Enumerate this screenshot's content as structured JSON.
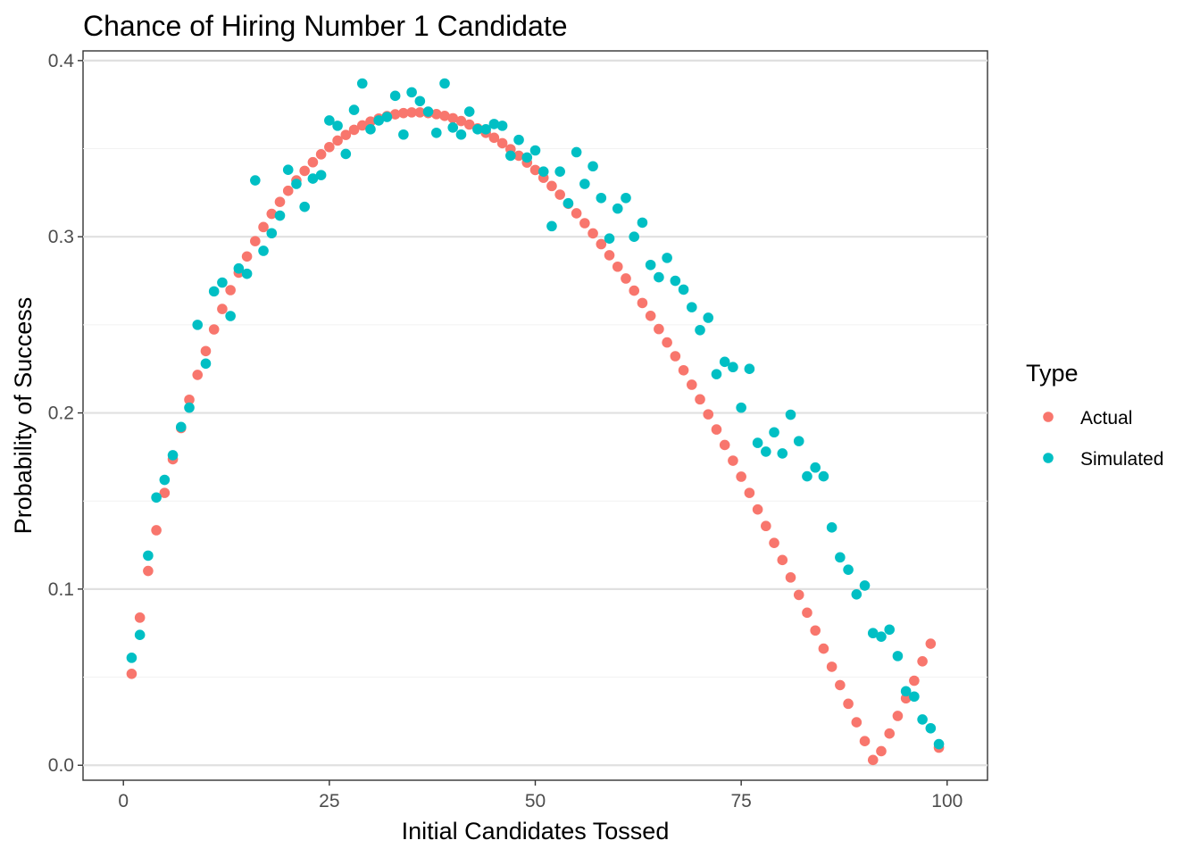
{
  "chart_data": {
    "type": "scatter",
    "title": "Chance of Hiring Number 1 Candidate",
    "xlabel": "Initial Candidates Tossed",
    "ylabel": "Probability of Success",
    "xlim": [
      -4.9,
      104.9
    ],
    "ylim": [
      -0.0085,
      0.4055
    ],
    "x_ticks": [
      0,
      25,
      50,
      75,
      100
    ],
    "x_tick_labels": [
      "0",
      "25",
      "50",
      "75",
      "100"
    ],
    "y_ticks": [
      0.0,
      0.1,
      0.2,
      0.3,
      0.4
    ],
    "y_tick_labels": [
      "0.0",
      "0.1",
      "0.2",
      "0.3",
      "0.4"
    ],
    "grid": true,
    "legend": {
      "title": "Type",
      "position": "right"
    },
    "series": [
      {
        "name": "Actual",
        "color": "#F8766D",
        "x": [
          1,
          2,
          3,
          4,
          5,
          6,
          7,
          8,
          9,
          10,
          11,
          12,
          13,
          14,
          15,
          16,
          17,
          18,
          19,
          20,
          21,
          22,
          23,
          24,
          25,
          26,
          27,
          28,
          29,
          30,
          31,
          32,
          33,
          34,
          35,
          36,
          37,
          38,
          39,
          40,
          41,
          42,
          43,
          44,
          45,
          46,
          47,
          48,
          49,
          50,
          51,
          52,
          53,
          54,
          55,
          56,
          57,
          58,
          59,
          60,
          61,
          62,
          63,
          64,
          65,
          66,
          67,
          68,
          69,
          70,
          71,
          72,
          73,
          74,
          75,
          76,
          77,
          78,
          79,
          80,
          81,
          82,
          83,
          84,
          85,
          86,
          87,
          88,
          89,
          90,
          91,
          92,
          93,
          94,
          95,
          96,
          97,
          98,
          99
        ],
        "y": [
          0.0519,
          0.0838,
          0.1103,
          0.1334,
          0.1546,
          0.1737,
          0.1914,
          0.2075,
          0.2216,
          0.2351,
          0.2474,
          0.259,
          0.2697,
          0.2796,
          0.2888,
          0.2975,
          0.3055,
          0.313,
          0.3198,
          0.3261,
          0.332,
          0.3374,
          0.3423,
          0.3468,
          0.3509,
          0.3546,
          0.3578,
          0.3607,
          0.3632,
          0.3654,
          0.3671,
          0.3685,
          0.3695,
          0.3702,
          0.3706,
          0.3706,
          0.3702,
          0.3696,
          0.3686,
          0.3673,
          0.3657,
          0.3637,
          0.3615,
          0.359,
          0.3562,
          0.3531,
          0.3497,
          0.346,
          0.3421,
          0.3379,
          0.3335,
          0.3288,
          0.3239,
          0.3187,
          0.3133,
          0.3077,
          0.3019,
          0.2958,
          0.2895,
          0.283,
          0.2763,
          0.2694,
          0.2624,
          0.2551,
          0.2476,
          0.24,
          0.2322,
          0.2242,
          0.216,
          0.2077,
          0.1992,
          0.1906,
          0.1818,
          0.1729,
          0.1638,
          0.1546,
          0.1452,
          0.1358,
          0.1262,
          0.1165,
          0.1066,
          0.0967,
          0.0866,
          0.0765,
          0.0662,
          0.0559,
          0.0455,
          0.0349,
          0.0244,
          0.0137,
          0.003,
          0.008,
          0.018,
          0.028,
          0.038,
          0.048,
          0.059,
          0.069,
          0.01
        ],
        "y_note": ""
      },
      {
        "name": "Simulated",
        "color": "#00BFC4",
        "x": [
          1,
          2,
          3,
          4,
          5,
          6,
          7,
          8,
          9,
          10,
          11,
          12,
          13,
          14,
          15,
          16,
          17,
          18,
          19,
          20,
          21,
          22,
          23,
          24,
          25,
          26,
          27,
          28,
          29,
          30,
          31,
          32,
          33,
          34,
          35,
          36,
          37,
          38,
          39,
          40,
          41,
          42,
          43,
          44,
          45,
          46,
          47,
          48,
          49,
          50,
          51,
          52,
          53,
          54,
          55,
          56,
          57,
          58,
          59,
          60,
          61,
          62,
          63,
          64,
          65,
          66,
          67,
          68,
          69,
          70,
          71,
          72,
          73,
          74,
          75,
          76,
          77,
          78,
          79,
          80,
          81,
          82,
          83,
          84,
          85,
          86,
          87,
          88,
          89,
          90,
          91,
          92,
          93,
          94,
          95,
          96,
          97,
          98,
          99
        ],
        "y": [
          0.061,
          0.074,
          0.119,
          0.152,
          0.162,
          0.176,
          0.192,
          0.203,
          0.25,
          0.228,
          0.269,
          0.274,
          0.255,
          0.282,
          0.279,
          0.332,
          0.292,
          0.302,
          0.312,
          0.338,
          0.33,
          0.317,
          0.333,
          0.335,
          0.366,
          0.363,
          0.347,
          0.372,
          0.387,
          0.361,
          0.366,
          0.368,
          0.38,
          0.358,
          0.382,
          0.377,
          0.371,
          0.359,
          0.387,
          0.362,
          0.358,
          0.371,
          0.361,
          0.361,
          0.364,
          0.363,
          0.346,
          0.355,
          0.345,
          0.349,
          0.337,
          0.306,
          0.337,
          0.319,
          0.348,
          0.33,
          0.34,
          0.322,
          0.299,
          0.316,
          0.322,
          0.3,
          0.308,
          0.284,
          0.277,
          0.288,
          0.275,
          0.27,
          0.26,
          0.247,
          0.254,
          0.222,
          0.229,
          0.226,
          0.203,
          0.225,
          0.183,
          0.178,
          0.189,
          0.177,
          0.199,
          0.184,
          0.164,
          0.169,
          0.164,
          0.135,
          0.118,
          0.111,
          0.097,
          0.102,
          0.075,
          0.073,
          0.077,
          0.062,
          0.042,
          0.039,
          0.026,
          0.021,
          0.012
        ]
      }
    ]
  }
}
